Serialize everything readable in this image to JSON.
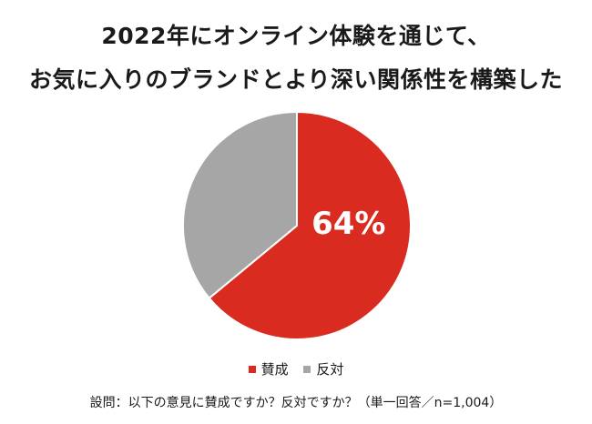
{
  "colors": {
    "agree": "#d92b20",
    "disagree": "#a6a6a6",
    "label_text": "#ffffff"
  },
  "chart_data": {
    "type": "pie",
    "title": [
      "2022年にオンライン体験を通じて、",
      "お気に入りのブランドとより深い関係性を構築した"
    ],
    "slices": [
      {
        "label": "賛成",
        "value": 64,
        "color": "#d92b20"
      },
      {
        "label": "反対",
        "value": 36,
        "color": "#a6a6a6"
      }
    ],
    "data_labels": [
      {
        "slice": "賛成",
        "text": "64%"
      }
    ],
    "legend": {
      "placement": "bottom",
      "entries": [
        "賛成",
        "反対"
      ]
    },
    "footnote": "設問：以下の意見に賛成ですか？反対ですか？（単一回答／n=1,004）"
  }
}
